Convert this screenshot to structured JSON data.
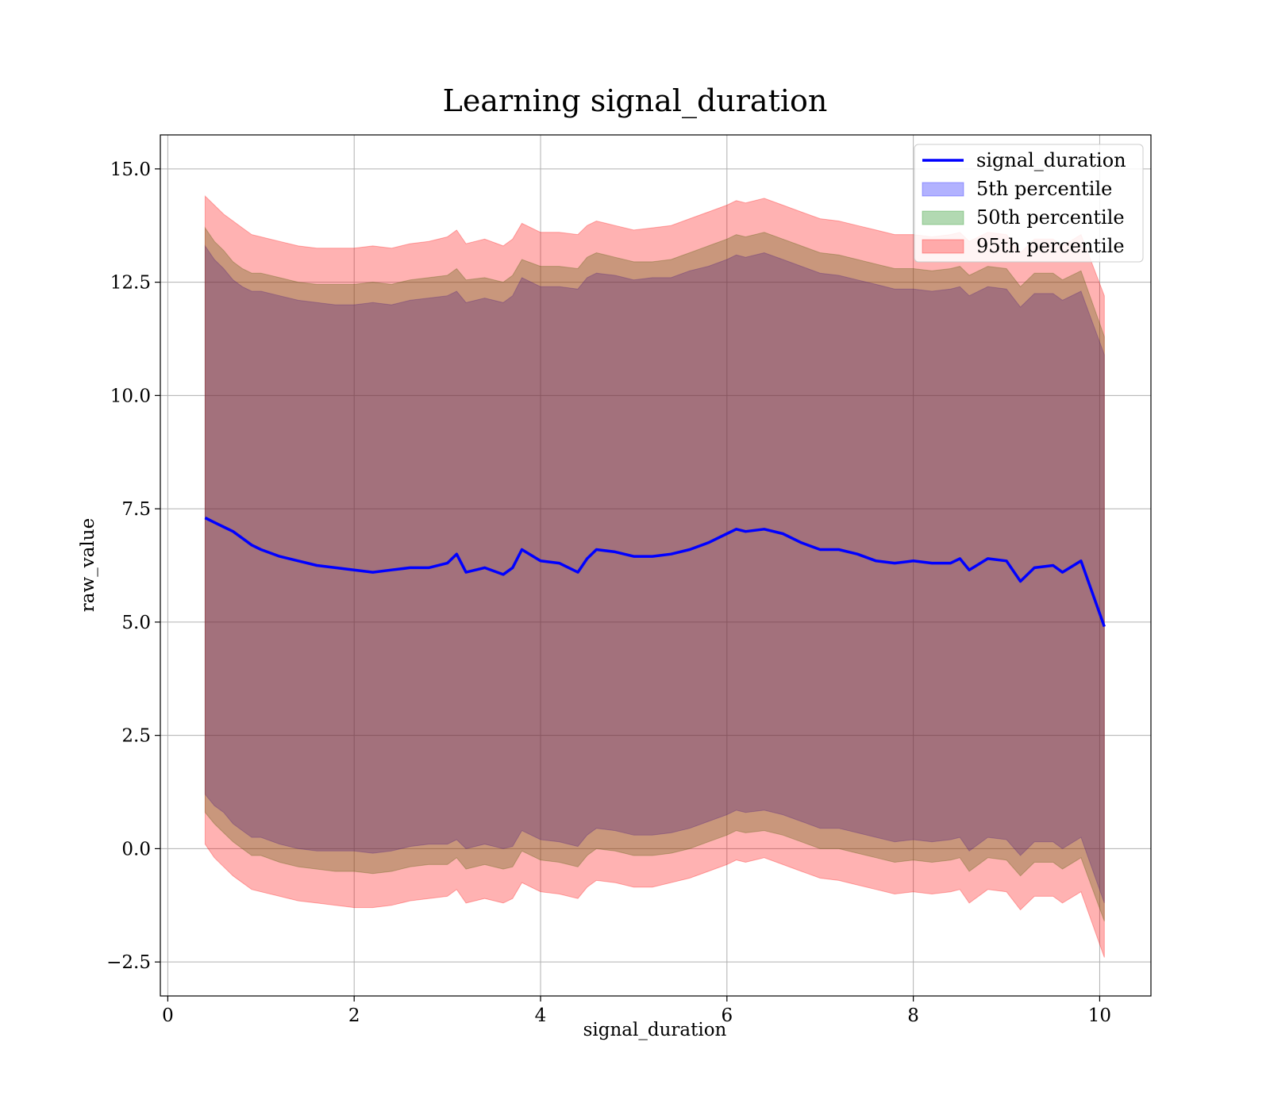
{
  "chart_data": {
    "type": "line",
    "title": "Learning signal_duration",
    "xlabel": "signal_duration",
    "ylabel": "raw_value",
    "xlim": [
      -0.08,
      10.55
    ],
    "ylim": [
      -3.25,
      15.75
    ],
    "xticks": [
      0,
      2,
      4,
      6,
      8,
      10
    ],
    "xtick_labels": [
      "0",
      "2",
      "4",
      "6",
      "8",
      "10"
    ],
    "yticks": [
      -2.5,
      0.0,
      2.5,
      5.0,
      7.5,
      10.0,
      12.5,
      15.0
    ],
    "ytick_labels": [
      "−2.5",
      "0.0",
      "2.5",
      "5.0",
      "7.5",
      "10.0",
      "12.5",
      "15.0"
    ],
    "grid": true,
    "legend_placement": "top-right",
    "x": [
      0.4,
      0.5,
      0.6,
      0.7,
      0.8,
      0.9,
      1.0,
      1.2,
      1.4,
      1.6,
      1.8,
      2.0,
      2.2,
      2.4,
      2.6,
      2.8,
      3.0,
      3.1,
      3.2,
      3.4,
      3.6,
      3.7,
      3.8,
      4.0,
      4.2,
      4.4,
      4.5,
      4.6,
      4.8,
      5.0,
      5.2,
      5.4,
      5.6,
      5.8,
      6.0,
      6.1,
      6.2,
      6.4,
      6.6,
      6.8,
      7.0,
      7.2,
      7.4,
      7.6,
      7.8,
      8.0,
      8.2,
      8.4,
      8.5,
      8.6,
      8.8,
      9.0,
      9.15,
      9.3,
      9.5,
      9.6,
      9.8,
      10.05
    ],
    "series": [
      {
        "name": "signal_duration",
        "kind": "line",
        "color": "#0000ff",
        "values": [
          7.3,
          7.2,
          7.1,
          7.0,
          6.85,
          6.7,
          6.6,
          6.45,
          6.35,
          6.25,
          6.2,
          6.15,
          6.1,
          6.15,
          6.2,
          6.2,
          6.3,
          6.5,
          6.1,
          6.2,
          6.05,
          6.2,
          6.6,
          6.35,
          6.3,
          6.1,
          6.4,
          6.6,
          6.55,
          6.45,
          6.45,
          6.5,
          6.6,
          6.75,
          6.95,
          7.05,
          7.0,
          7.05,
          6.95,
          6.75,
          6.6,
          6.6,
          6.5,
          6.35,
          6.3,
          6.35,
          6.3,
          6.3,
          6.4,
          6.15,
          6.4,
          6.35,
          5.9,
          6.2,
          6.25,
          6.1,
          6.35,
          4.9
        ]
      },
      {
        "name": "5th percentile",
        "kind": "band",
        "color": "#0000ff",
        "upper": [
          13.3,
          13.0,
          12.8,
          12.55,
          12.4,
          12.3,
          12.3,
          12.2,
          12.1,
          12.05,
          12.0,
          12.0,
          12.05,
          12.0,
          12.1,
          12.15,
          12.2,
          12.3,
          12.05,
          12.15,
          12.05,
          12.2,
          12.6,
          12.4,
          12.4,
          12.35,
          12.6,
          12.7,
          12.65,
          12.55,
          12.6,
          12.6,
          12.75,
          12.85,
          13.0,
          13.1,
          13.05,
          13.15,
          13.0,
          12.85,
          12.7,
          12.65,
          12.55,
          12.45,
          12.35,
          12.35,
          12.3,
          12.35,
          12.4,
          12.2,
          12.4,
          12.35,
          11.95,
          12.25,
          12.25,
          12.1,
          12.3,
          10.9
        ],
        "lower": [
          1.2,
          0.95,
          0.8,
          0.55,
          0.4,
          0.25,
          0.25,
          0.1,
          0.0,
          -0.05,
          -0.05,
          -0.05,
          -0.1,
          -0.05,
          0.05,
          0.1,
          0.1,
          0.2,
          0.0,
          0.1,
          0.0,
          0.05,
          0.4,
          0.2,
          0.15,
          0.05,
          0.3,
          0.45,
          0.4,
          0.3,
          0.3,
          0.35,
          0.45,
          0.6,
          0.75,
          0.85,
          0.8,
          0.85,
          0.75,
          0.6,
          0.45,
          0.45,
          0.35,
          0.25,
          0.15,
          0.2,
          0.15,
          0.2,
          0.25,
          -0.05,
          0.25,
          0.2,
          -0.15,
          0.15,
          0.15,
          0.0,
          0.25,
          -1.2
        ]
      },
      {
        "name": "50th percentile",
        "kind": "band",
        "color": "#008000",
        "upper": [
          13.7,
          13.4,
          13.2,
          12.95,
          12.8,
          12.7,
          12.7,
          12.6,
          12.5,
          12.45,
          12.45,
          12.45,
          12.5,
          12.45,
          12.55,
          12.6,
          12.65,
          12.8,
          12.55,
          12.6,
          12.5,
          12.65,
          13.0,
          12.85,
          12.85,
          12.8,
          13.05,
          13.15,
          13.05,
          12.95,
          12.95,
          13.0,
          13.15,
          13.3,
          13.45,
          13.55,
          13.5,
          13.6,
          13.45,
          13.3,
          13.15,
          13.1,
          13.0,
          12.9,
          12.8,
          12.8,
          12.75,
          12.8,
          12.85,
          12.65,
          12.85,
          12.8,
          12.4,
          12.7,
          12.7,
          12.55,
          12.75,
          11.3
        ],
        "lower": [
          0.8,
          0.55,
          0.35,
          0.15,
          0.0,
          -0.15,
          -0.15,
          -0.3,
          -0.4,
          -0.45,
          -0.5,
          -0.5,
          -0.55,
          -0.5,
          -0.4,
          -0.35,
          -0.35,
          -0.2,
          -0.45,
          -0.35,
          -0.45,
          -0.4,
          -0.05,
          -0.25,
          -0.3,
          -0.4,
          -0.15,
          0.0,
          -0.05,
          -0.15,
          -0.15,
          -0.1,
          0.0,
          0.15,
          0.3,
          0.4,
          0.35,
          0.4,
          0.3,
          0.15,
          0.0,
          0.0,
          -0.1,
          -0.2,
          -0.3,
          -0.25,
          -0.3,
          -0.25,
          -0.2,
          -0.5,
          -0.2,
          -0.25,
          -0.6,
          -0.3,
          -0.3,
          -0.45,
          -0.2,
          -1.6
        ]
      },
      {
        "name": "95th percentile",
        "kind": "band",
        "color": "#ff0000",
        "upper": [
          14.4,
          14.2,
          14.0,
          13.85,
          13.7,
          13.55,
          13.5,
          13.4,
          13.3,
          13.25,
          13.25,
          13.25,
          13.3,
          13.25,
          13.35,
          13.4,
          13.5,
          13.65,
          13.35,
          13.45,
          13.3,
          13.45,
          13.8,
          13.6,
          13.6,
          13.55,
          13.75,
          13.85,
          13.75,
          13.65,
          13.7,
          13.75,
          13.9,
          14.05,
          14.2,
          14.3,
          14.25,
          14.35,
          14.2,
          14.05,
          13.9,
          13.85,
          13.75,
          13.65,
          13.55,
          13.55,
          13.5,
          13.55,
          13.6,
          13.4,
          13.6,
          13.55,
          13.15,
          13.45,
          13.45,
          13.3,
          13.55,
          12.2
        ],
        "lower": [
          0.1,
          -0.2,
          -0.4,
          -0.6,
          -0.75,
          -0.9,
          -0.95,
          -1.05,
          -1.15,
          -1.2,
          -1.25,
          -1.3,
          -1.3,
          -1.25,
          -1.15,
          -1.1,
          -1.05,
          -0.9,
          -1.2,
          -1.1,
          -1.2,
          -1.1,
          -0.75,
          -0.95,
          -1.0,
          -1.1,
          -0.85,
          -0.7,
          -0.75,
          -0.85,
          -0.85,
          -0.75,
          -0.65,
          -0.5,
          -0.35,
          -0.25,
          -0.3,
          -0.2,
          -0.35,
          -0.5,
          -0.65,
          -0.7,
          -0.8,
          -0.9,
          -1.0,
          -0.95,
          -1.0,
          -0.95,
          -0.9,
          -1.2,
          -0.9,
          -0.95,
          -1.35,
          -1.05,
          -1.05,
          -1.2,
          -0.95,
          -2.4
        ]
      }
    ]
  }
}
